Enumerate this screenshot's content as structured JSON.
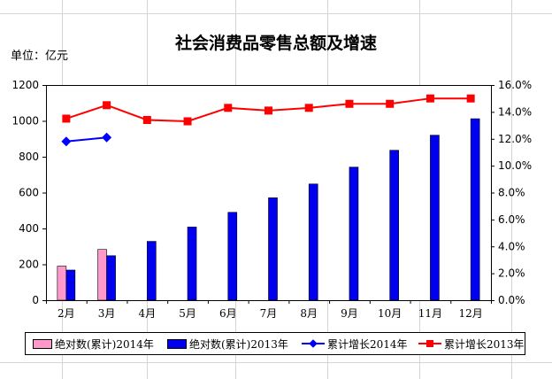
{
  "chart_data": {
    "type": "bar",
    "title": "社会消费品零售总额及增速",
    "unit_label": "单位：亿元",
    "categories": [
      "2月",
      "3月",
      "4月",
      "5月",
      "6月",
      "7月",
      "8月",
      "9月",
      "10月",
      "11月",
      "12月"
    ],
    "y_left": {
      "min": 0,
      "max": 1200,
      "ticks": [
        "0",
        "200",
        "400",
        "600",
        "800",
        "1000",
        "1200"
      ]
    },
    "y_right": {
      "min": 0,
      "max": 16,
      "ticks": [
        "0.0%",
        "2.0%",
        "4.0%",
        "6.0%",
        "8.0%",
        "10.0%",
        "12.0%",
        "14.0%",
        "16.0%"
      ]
    },
    "series": [
      {
        "name": "绝对数(累计)2014年",
        "kind": "bar",
        "axis": "left",
        "color": "#ff99cc",
        "values": [
          190,
          283,
          null,
          null,
          null,
          null,
          null,
          null,
          null,
          null,
          null
        ]
      },
      {
        "name": "绝对数(累计)2013年",
        "kind": "bar",
        "axis": "left",
        "color": "#0000ee",
        "values": [
          168,
          248,
          328,
          408,
          490,
          571,
          648,
          742,
          836,
          920,
          1012
        ]
      },
      {
        "name": "累计增长2014年",
        "kind": "line",
        "axis": "right",
        "color": "#0000ff",
        "marker": "diamond",
        "values": [
          11.8,
          12.1,
          null,
          null,
          null,
          null,
          null,
          null,
          null,
          null,
          null
        ]
      },
      {
        "name": "累计增长2013年",
        "kind": "line",
        "axis": "right",
        "color": "#ff0000",
        "marker": "square",
        "values": [
          13.5,
          14.5,
          13.4,
          13.3,
          14.3,
          14.1,
          14.3,
          14.6,
          14.6,
          15.0,
          15.0
        ]
      }
    ],
    "grid": false,
    "legend_position": "bottom"
  }
}
